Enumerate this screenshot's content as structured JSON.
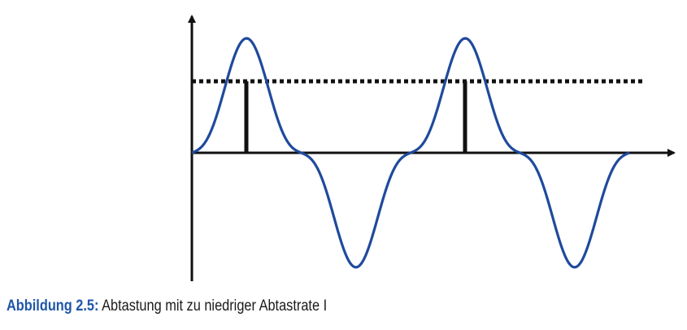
{
  "caption": {
    "label": "Abbildung 2.5:",
    "text": " Abtastung mit zu niedriger Abtastrate I"
  },
  "colors": {
    "signal": "#1f4a9c",
    "axis": "#111111",
    "caption_label": "#1f56a8",
    "sample": "#111111",
    "threshold": "#111111"
  },
  "signal": {
    "description_free": true,
    "samples_at_phase": [
      0.25,
      1.25
    ],
    "components": [
      {
        "harmonic": 1,
        "amplitude": 1.0
      },
      {
        "harmonic": 3,
        "amplitude": -0.28
      }
    ]
  }
}
